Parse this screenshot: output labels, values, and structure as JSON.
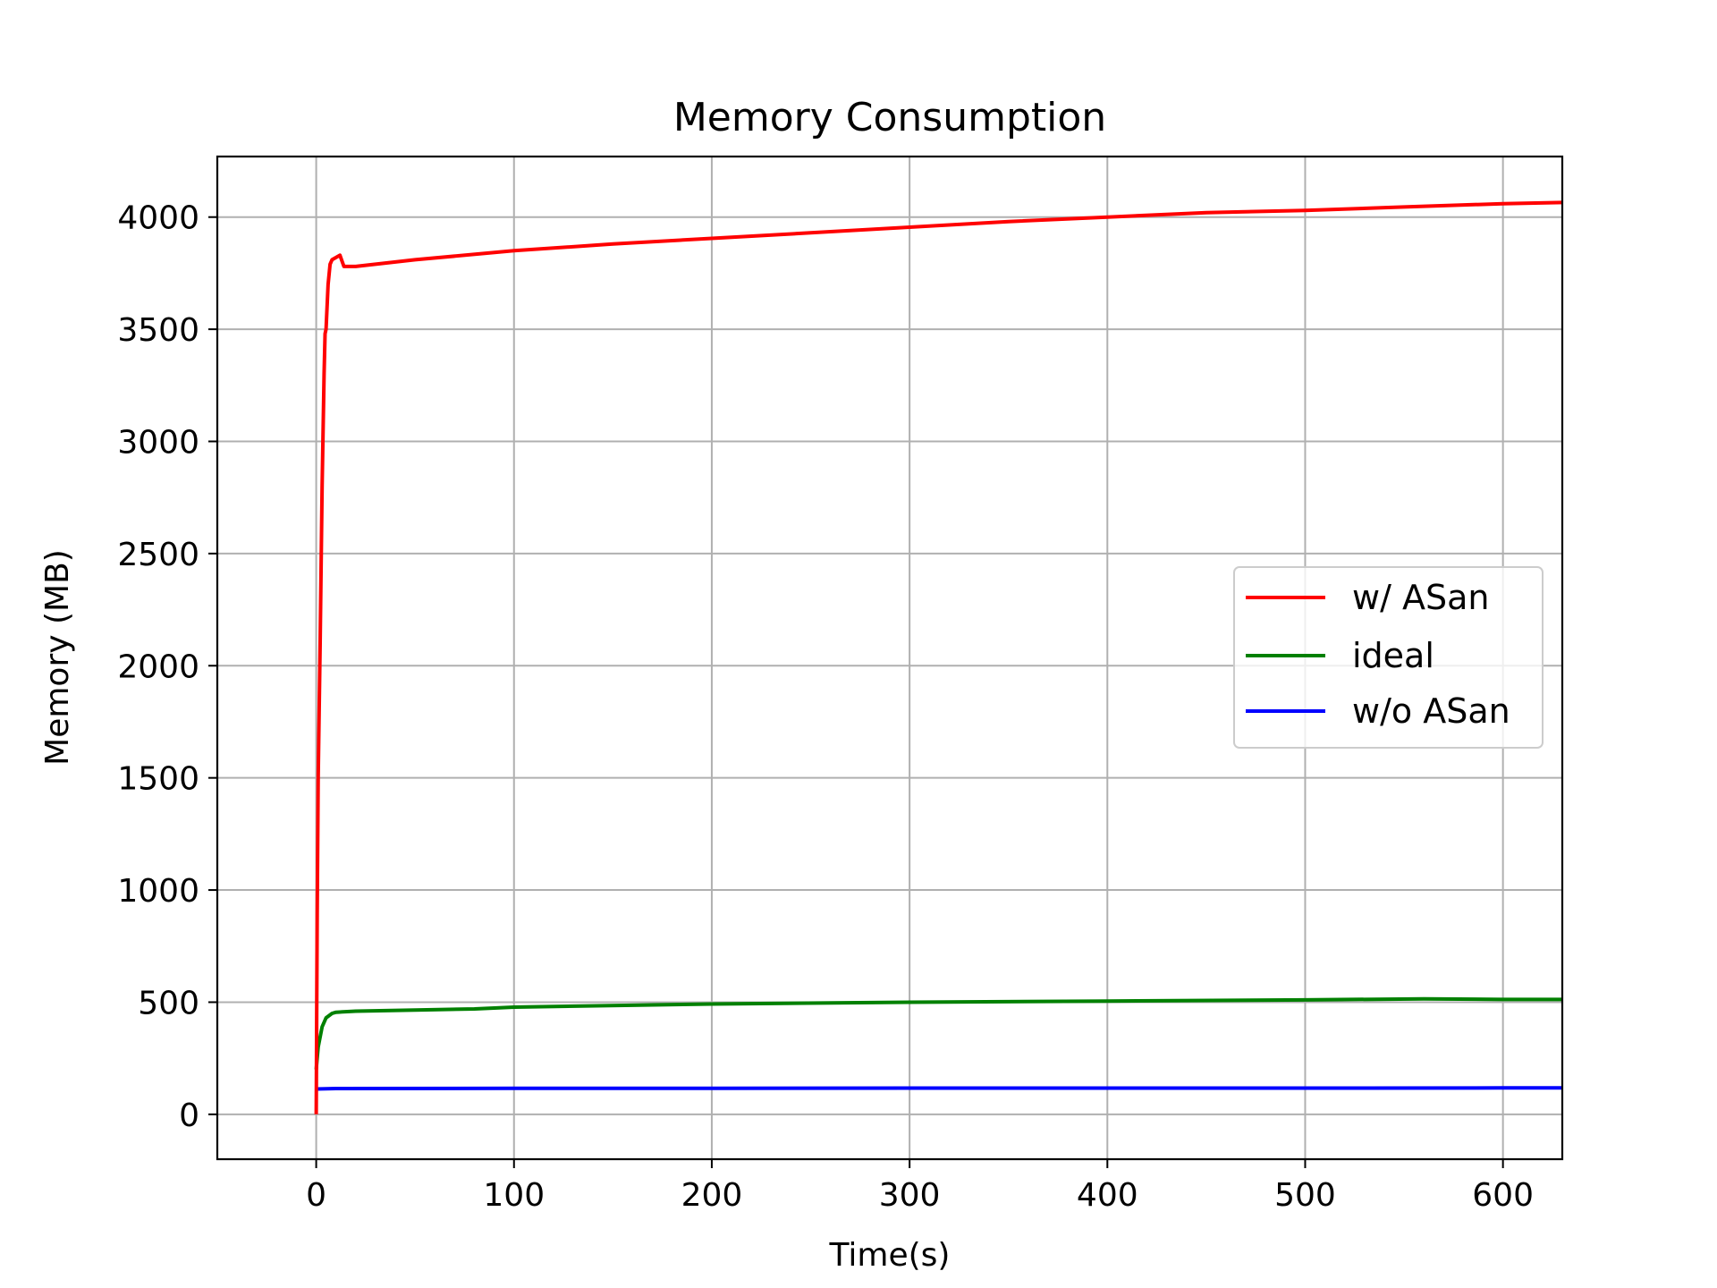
{
  "chart_data": {
    "type": "line",
    "title": "Memory Consumption",
    "xlabel": "Time(s)",
    "ylabel": "Memory (MB)",
    "xlim": [
      -50,
      630
    ],
    "ylim": [
      -200,
      4270
    ],
    "xticks": [
      0,
      100,
      200,
      300,
      400,
      500,
      600
    ],
    "yticks": [
      0,
      500,
      1000,
      1500,
      2000,
      2500,
      3000,
      3500,
      4000
    ],
    "grid": true,
    "legend_position": "center-right",
    "series": [
      {
        "name": "w/ ASan",
        "color": "#ff0000",
        "x": [
          0,
          0.5,
          1,
          2,
          3,
          4,
          4.5,
          5,
          6,
          7,
          8,
          10,
          12,
          14,
          20,
          50,
          100,
          150,
          200,
          250,
          300,
          350,
          400,
          450,
          500,
          550,
          600,
          630
        ],
        "y": [
          0,
          900,
          1500,
          2100,
          2800,
          3300,
          3480,
          3500,
          3700,
          3790,
          3810,
          3820,
          3830,
          3780,
          3780,
          3810,
          3850,
          3880,
          3905,
          3930,
          3955,
          3980,
          4000,
          4020,
          4030,
          4045,
          4060,
          4065
        ]
      },
      {
        "name": "ideal",
        "color": "#008000",
        "x": [
          0,
          1,
          3,
          5,
          8,
          10,
          20,
          50,
          80,
          100,
          200,
          300,
          400,
          500,
          560,
          600,
          630
        ],
        "y": [
          200,
          300,
          390,
          430,
          450,
          455,
          460,
          465,
          470,
          478,
          492,
          500,
          505,
          510,
          515,
          512,
          512
        ]
      },
      {
        "name": "w/o ASan",
        "color": "#0000ff",
        "x": [
          0,
          10,
          100,
          200,
          300,
          400,
          500,
          600,
          630
        ],
        "y": [
          113,
          115,
          116,
          116,
          117,
          117,
          117,
          118,
          118
        ]
      }
    ]
  }
}
